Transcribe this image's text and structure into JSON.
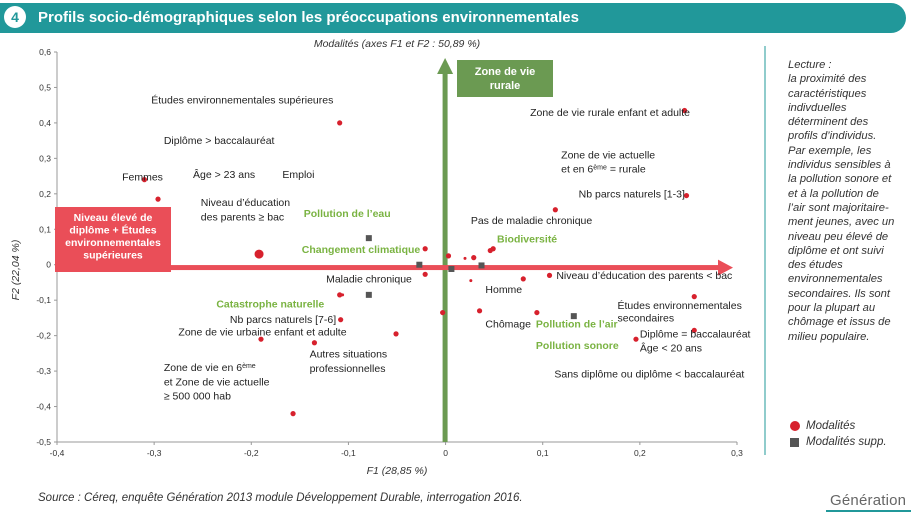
{
  "header": {
    "number": "4",
    "title": "Profils socio-démographiques selon les préoccupations environnementales"
  },
  "chart_data": {
    "type": "scatter",
    "title": "Modalités (axes F1 et F2 : 50,89 %)",
    "xlabel": "F1 (28,85 %)",
    "ylabel": "F2 (22,04 %)",
    "xlim": [
      -0.4,
      0.3
    ],
    "ylim": [
      -0.5,
      0.6
    ],
    "x_ticks": [
      -0.4,
      -0.3,
      -0.2,
      -0.1,
      0,
      0.1,
      0.2,
      0.3
    ],
    "y_ticks": [
      -0.5,
      -0.4,
      -0.3,
      -0.2,
      -0.1,
      0,
      0.1,
      0.2,
      0.3,
      0.4,
      0.5,
      0.6
    ],
    "x_tick_labels": [
      "-0,4",
      "-0,3",
      "-0,2",
      "-0,1",
      "0",
      "0,1",
      "0,2",
      "0,3"
    ],
    "y_tick_labels": [
      "-0,5",
      "-0,4",
      "-0,3",
      "-0,2",
      "-0,1",
      "0",
      "0,1",
      "0,2",
      "0,3",
      "0,4",
      "0,5",
      "0,6"
    ],
    "axis_arrow_labels": {
      "horizontal": "Niveau élevé de diplôme + Études environnementales supérieures",
      "vertical": "Zone de vie rurale"
    },
    "modalites": [
      {
        "x": -0.31,
        "y": 0.24
      },
      {
        "x": -0.296,
        "y": 0.185
      },
      {
        "x": -0.109,
        "y": 0.4
      },
      {
        "x": -0.192,
        "y": 0.03,
        "large": true
      },
      {
        "x": -0.021,
        "y": 0.045
      },
      {
        "x": -0.021,
        "y": -0.027
      },
      {
        "x": 0.003,
        "y": 0.025
      },
      {
        "x": 0.029,
        "y": 0.02
      },
      {
        "x": 0.046,
        "y": 0.04
      },
      {
        "x": 0.049,
        "y": 0.045
      },
      {
        "x": -0.109,
        "y": -0.085
      },
      {
        "x": -0.108,
        "y": -0.155
      },
      {
        "x": -0.19,
        "y": -0.21
      },
      {
        "x": -0.135,
        "y": -0.22
      },
      {
        "x": -0.051,
        "y": -0.195
      },
      {
        "x": -0.003,
        "y": -0.135
      },
      {
        "x": 0.035,
        "y": -0.13
      },
      {
        "x": 0.08,
        "y": -0.04
      },
      {
        "x": 0.094,
        "y": -0.135
      },
      {
        "x": 0.107,
        "y": -0.03
      },
      {
        "x": 0.113,
        "y": 0.155
      },
      {
        "x": 0.246,
        "y": 0.435
      },
      {
        "x": 0.248,
        "y": 0.195
      },
      {
        "x": 0.256,
        "y": -0.09
      },
      {
        "x": 0.256,
        "y": -0.185
      },
      {
        "x": 0.196,
        "y": -0.21
      },
      {
        "x": -0.157,
        "y": -0.42
      },
      {
        "x": 0.02,
        "y": 0.018,
        "small": true
      },
      {
        "x": 0.026,
        "y": -0.045,
        "small": true
      },
      {
        "x": -0.106,
        "y": -0.085,
        "small": true
      }
    ],
    "modalites_supp": [
      {
        "x": -0.079,
        "y": 0.075
      },
      {
        "x": -0.079,
        "y": -0.085
      },
      {
        "x": -0.027,
        "y": 0.0
      },
      {
        "x": 0.006,
        "y": -0.012
      },
      {
        "x": 0.037,
        "y": -0.002
      },
      {
        "x": 0.132,
        "y": -0.145
      }
    ],
    "labels": [
      {
        "text": "Études environnementales supérieures",
        "x": -0.303,
        "y": 0.455,
        "color": "dark"
      },
      {
        "text": "Diplôme > baccalauréat",
        "x": -0.29,
        "y": 0.34,
        "color": "dark"
      },
      {
        "text": "Femmes",
        "x": -0.333,
        "y": 0.238,
        "color": "dark"
      },
      {
        "text": "Âge > 23 ans",
        "x": -0.26,
        "y": 0.245,
        "color": "dark"
      },
      {
        "text": "Emploi",
        "x": -0.168,
        "y": 0.245,
        "color": "dark"
      },
      {
        "text": "Niveau d’éducation",
        "x": -0.252,
        "y": 0.165,
        "color": "dark"
      },
      {
        "text": "des parents ≥ bac",
        "x": -0.252,
        "y": 0.125,
        "color": "dark"
      },
      {
        "text": "Pollution de l’eau",
        "x": -0.146,
        "y": 0.135,
        "color": "green"
      },
      {
        "text": "Changement climatique",
        "x": -0.148,
        "y": 0.033,
        "color": "green"
      },
      {
        "text": "Maladie chronique",
        "x": -0.123,
        "y": -0.05,
        "color": "dark"
      },
      {
        "text": "Catastrophe naturelle",
        "x": -0.236,
        "y": -0.12,
        "color": "green"
      },
      {
        "text": "Nb parcs naturels [7-6]",
        "x": -0.222,
        "y": -0.165,
        "color": "dark"
      },
      {
        "text": "Zone de vie urbaine enfant et adulte",
        "x": -0.275,
        "y": -0.2,
        "color": "dark"
      },
      {
        "text": "Autres situations",
        "x": -0.14,
        "y": -0.262,
        "color": "dark"
      },
      {
        "text": "professionnelles",
        "x": -0.14,
        "y": -0.302,
        "color": "dark"
      },
      {
        "text": "Zone de vie en 6ème",
        "x": -0.29,
        "y": -0.3,
        "color": "dark"
      },
      {
        "text": "et Zone de vie actuelle",
        "x": -0.29,
        "y": -0.34,
        "color": "dark"
      },
      {
        "text": "≥ 500 000 hab",
        "x": -0.29,
        "y": -0.38,
        "color": "dark"
      },
      {
        "text": "Zone de vie rurale enfant et adulte",
        "x": 0.087,
        "y": 0.42,
        "color": "dark"
      },
      {
        "text": "Zone de vie actuelle",
        "x": 0.119,
        "y": 0.3,
        "color": "dark"
      },
      {
        "text": "et en 6ème = rurale",
        "x": 0.119,
        "y": 0.26,
        "color": "dark"
      },
      {
        "text": "Nb parcs naturels [1-3]",
        "x": 0.137,
        "y": 0.19,
        "color": "dark"
      },
      {
        "text": "Pas de maladie chronique",
        "x": 0.026,
        "y": 0.115,
        "color": "dark"
      },
      {
        "text": "Biodiversité",
        "x": 0.053,
        "y": 0.063,
        "color": "green"
      },
      {
        "text": "Niveau d’éducation des parents < bac",
        "x": 0.114,
        "y": -0.04,
        "color": "dark"
      },
      {
        "text": "Homme",
        "x": 0.041,
        "y": -0.08,
        "color": "dark"
      },
      {
        "text": "Études environnementales",
        "x": 0.177,
        "y": -0.125,
        "color": "dark"
      },
      {
        "text": "secondaires",
        "x": 0.177,
        "y": -0.16,
        "color": "dark"
      },
      {
        "text": "Chômage",
        "x": 0.041,
        "y": -0.177,
        "color": "dark"
      },
      {
        "text": "Pollution de l’air",
        "x": 0.093,
        "y": -0.177,
        "color": "green"
      },
      {
        "text": "Diplôme = baccalauréat",
        "x": 0.2,
        "y": -0.205,
        "color": "dark"
      },
      {
        "text": "Âge < 20 ans",
        "x": 0.2,
        "y": -0.245,
        "color": "dark"
      },
      {
        "text": "Pollution sonore",
        "x": 0.093,
        "y": -0.238,
        "color": "green"
      },
      {
        "text": "Sans diplôme ou diplôme < baccalauréat",
        "x": 0.112,
        "y": -0.318,
        "color": "dark"
      }
    ],
    "legend": {
      "placement": "right-bottom",
      "modalites": "Modalités",
      "modalites_supp": "Modalités supp."
    },
    "colors": {
      "points": "#d7212d",
      "supp": "#555555",
      "horizontal_arrow": "#ea4e58",
      "vertical_arrow": "#6b9a52",
      "green_text": "#7ab342",
      "teal": "#21989a"
    }
  },
  "reading": {
    "lines": [
      "Lecture :",
      "la proximité des",
      "caractéristiques",
      "indivduelles",
      "déterminent des",
      "profils d’individus.",
      "Par exemple, les",
      "individus sensibles à",
      "la pollution sonore et",
      "et à la pollution de",
      "l’air sont majoritaire-",
      "ment jeunes, avec un",
      "niveau peu élevé de",
      "diplôme et ont suivi",
      "des études",
      "environnementales",
      "secondaires. Ils sont",
      "pour la plupart au",
      "chômage et issus de",
      "milieu populaire."
    ]
  },
  "source": "Source : Céreq, enquête Génération 2013 module Développement Durable, interrogation 2016.",
  "logo": "Génération"
}
